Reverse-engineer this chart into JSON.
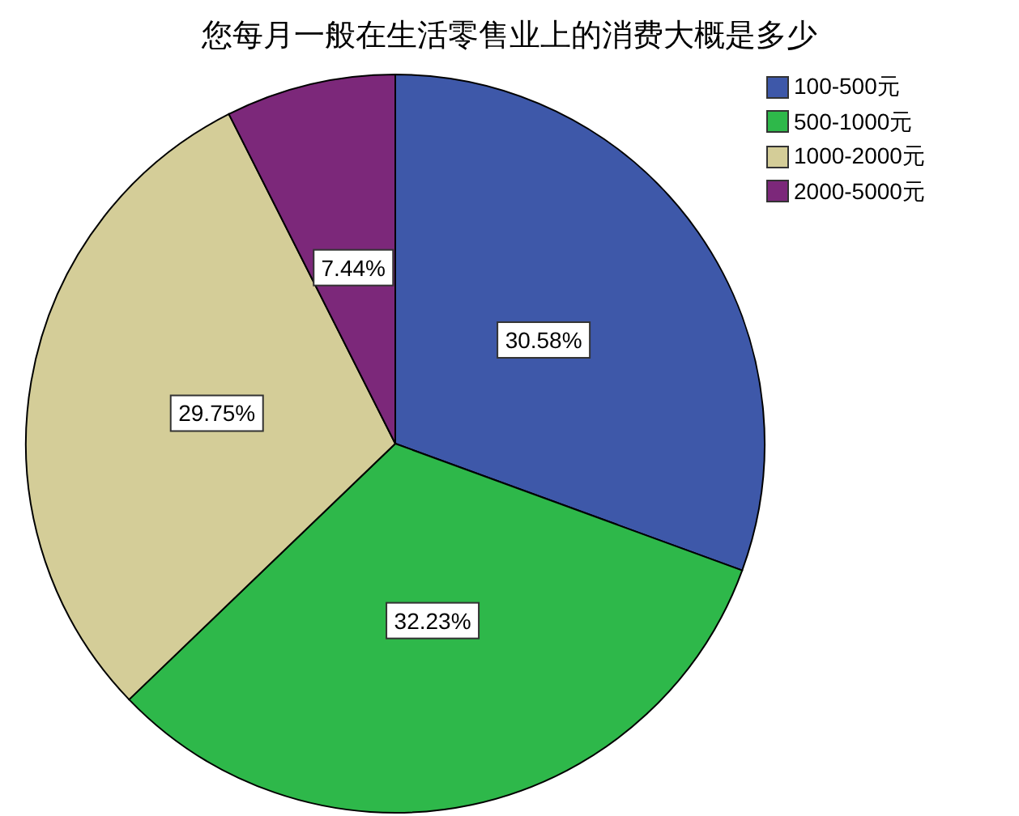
{
  "chart_data": {
    "type": "pie",
    "title": "您每月一般在生活零售业上的消费大概是多少",
    "categories": [
      "100-500元",
      "500-1000元",
      "1000-2000元",
      "2000-5000元"
    ],
    "values": [
      30.58,
      32.23,
      29.75,
      7.44
    ],
    "colors": [
      "#3e58a9",
      "#2eb84a",
      "#d4cd98",
      "#7c287a"
    ],
    "value_labels": [
      "30.58%",
      "32.23%",
      "29.75%",
      "7.44%"
    ],
    "legend": "top right"
  }
}
